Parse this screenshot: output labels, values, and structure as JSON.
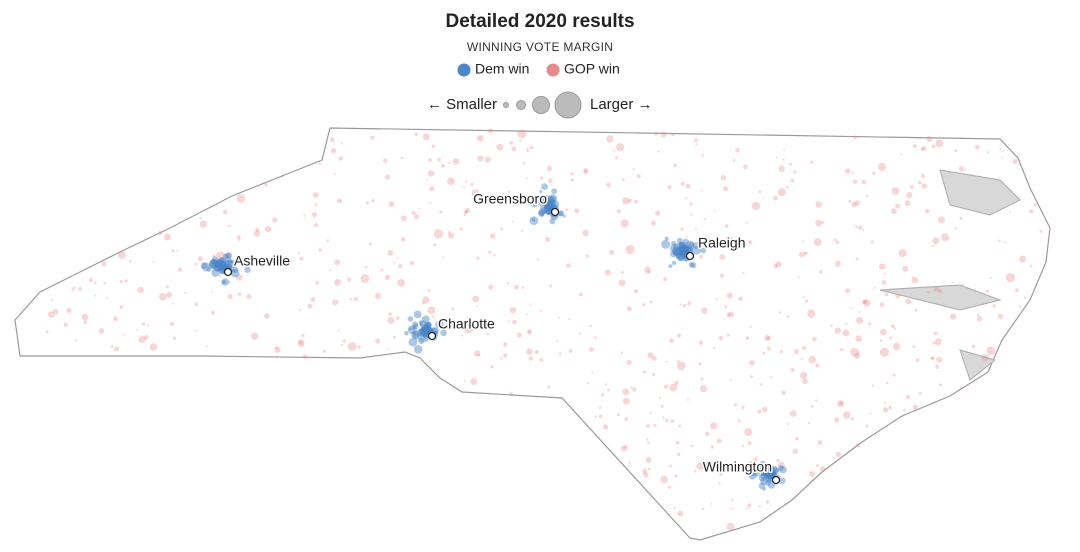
{
  "title": "Detailed 2020 results",
  "legend": {
    "title": "WINNING VOTE MARGIN",
    "items": [
      {
        "label": "Dem win",
        "color": "#4a86c8"
      },
      {
        "label": "GOP win",
        "color": "#e8898b"
      }
    ],
    "size": {
      "smaller": "← Smaller",
      "larger": "Larger →"
    }
  },
  "cities": [
    {
      "label": "Greensboro"
    },
    {
      "label": "Raleigh"
    },
    {
      "label": "Asheville"
    },
    {
      "label": "Charlotte"
    },
    {
      "label": "Wilmington"
    }
  ]
}
